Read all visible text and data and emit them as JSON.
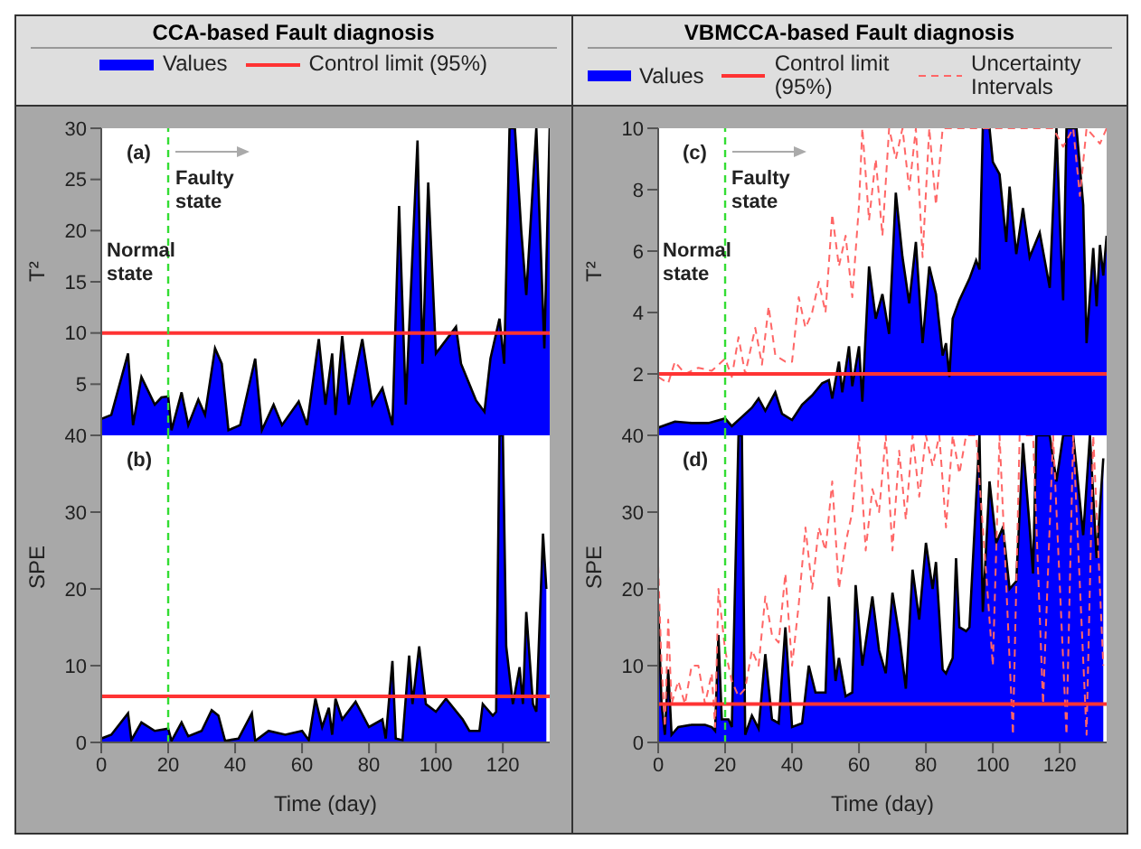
{
  "chart_data": [
    {
      "type": "area",
      "title": "CCA-based Fault diagnosis",
      "ylabel": "T²",
      "legend": "top",
      "annotations": [
        "(a)",
        "Faulty state",
        "Normal state"
      ],
      "xlim": [
        0,
        134
      ],
      "xticks": [
        0,
        20,
        40,
        60,
        80,
        100,
        120
      ],
      "ylim": [
        0,
        30
      ],
      "yticks": [
        {
          "value": 0,
          "label": null
        },
        5,
        10,
        15,
        20,
        25,
        30
      ],
      "tick_labels": "y",
      "series": [
        {
          "name": "Values",
          "color": "#0000ff",
          "x": [
            0,
            3,
            8,
            9.5,
            12,
            16,
            18,
            20,
            21,
            24,
            26,
            29,
            31,
            34,
            36,
            38,
            41.5,
            46,
            48,
            51.5,
            54,
            59,
            61.5,
            65,
            67,
            69,
            70,
            72,
            74,
            78,
            81,
            84,
            87,
            89,
            91,
            94.5,
            96,
            97.7,
            100,
            106,
            107.5,
            112,
            114.5,
            116.3,
            119,
            120.4,
            122,
            123.6,
            125.5,
            127,
            130,
            132.4,
            134
          ],
          "values": [
            1.6,
            2,
            8,
            1,
            5.7,
            3,
            3.7,
            3.8,
            0.5,
            4.2,
            1,
            3.5,
            2,
            8.5,
            7,
            0.5,
            1,
            7.5,
            0.5,
            3,
            1,
            3.3,
            1,
            9.4,
            3,
            8,
            2,
            9.7,
            3,
            9.4,
            3,
            4.6,
            1,
            22.4,
            3,
            28.8,
            7,
            24.7,
            8,
            10.6,
            7,
            3.4,
            2.3,
            7.5,
            11.4,
            7,
            30,
            30,
            20,
            13.7,
            30,
            8.5,
            30
          ]
        }
      ],
      "ref_lines": [
        {
          "axis": "y",
          "value": 10,
          "label": "Control limit (95%)",
          "color": "#ff3333"
        },
        {
          "axis": "x",
          "value": 20,
          "color": "#33dd33",
          "line_style": "dashed"
        }
      ]
    },
    {
      "type": "area",
      "xlabel": "Time (day)",
      "ylabel": "SPE",
      "annotations": [
        "(b)"
      ],
      "xlim": [
        0,
        134
      ],
      "xticks": [
        0,
        20,
        40,
        60,
        80,
        100,
        120
      ],
      "ylim": [
        0,
        40
      ],
      "yticks": [
        0,
        10,
        20,
        30,
        40
      ],
      "series": [
        {
          "color": "#0000ff",
          "x": [
            0,
            3,
            8,
            9,
            12,
            16,
            20,
            21,
            24,
            26,
            30,
            33,
            35,
            37,
            41,
            45,
            46,
            50,
            55,
            60,
            62,
            64,
            66,
            68,
            69,
            70,
            72,
            76,
            80,
            84,
            85,
            87,
            88,
            90,
            92,
            93,
            95,
            97,
            100,
            103,
            108,
            110,
            113,
            114,
            117,
            118,
            119,
            120,
            121,
            123,
            125,
            126,
            127,
            129,
            130,
            132,
            133
          ],
          "values": [
            0.5,
            1,
            3.8,
            0.3,
            2.6,
            1.5,
            1.8,
            0.2,
            2.6,
            0.8,
            1.5,
            4.2,
            3.5,
            0.2,
            0.5,
            3.8,
            0.2,
            1.5,
            1,
            1.5,
            0.3,
            5.7,
            2,
            4.5,
            1,
            5.7,
            3,
            5.3,
            2,
            3,
            0.5,
            10.6,
            0.5,
            0.3,
            11.3,
            5,
            12.5,
            5,
            4,
            5.7,
            3,
            1.5,
            1.5,
            5,
            3.5,
            4,
            40,
            40,
            12.5,
            5,
            9.8,
            5,
            17,
            5,
            4,
            27.2,
            20
          ]
        }
      ],
      "ref_lines": [
        {
          "axis": "y",
          "value": 6,
          "color": "#ff3333"
        },
        {
          "axis": "x",
          "value": 20,
          "color": "#33dd33",
          "line_style": "dashed"
        }
      ]
    },
    {
      "type": "area",
      "title": "VBMCCA-based Fault diagnosis",
      "ylabel": "T²",
      "legend": "top",
      "annotations": [
        "(c)",
        "Faulty state",
        "Normal state"
      ],
      "xlim": [
        0,
        134
      ],
      "xticks": [
        0,
        20,
        40,
        60,
        80,
        100,
        120
      ],
      "ylim": [
        0,
        10
      ],
      "yticks": [
        {
          "value": 0,
          "label": null
        },
        2,
        4,
        6,
        8,
        10
      ],
      "tick_labels": "y",
      "series": [
        {
          "name": "Values",
          "color": "#0000ff",
          "x": [
            0,
            5,
            10,
            15,
            20,
            22,
            25,
            28,
            30,
            32,
            35,
            37,
            40,
            43,
            46,
            49,
            51,
            52,
            54,
            55,
            57,
            58,
            60,
            61,
            63,
            65,
            67,
            69,
            71,
            73,
            75,
            77,
            79,
            81,
            83,
            85,
            86,
            87,
            88,
            90,
            93,
            95,
            96,
            97,
            99,
            100,
            102,
            104,
            105,
            107,
            109,
            111,
            114,
            117,
            119,
            120,
            121,
            122,
            125,
            127,
            128,
            130,
            131,
            132,
            133,
            134
          ],
          "values": [
            0.25,
            0.45,
            0.4,
            0.4,
            0.55,
            0.3,
            0.6,
            0.9,
            1.2,
            0.8,
            1.4,
            0.7,
            0.5,
            1,
            1.3,
            1.7,
            1.8,
            1.2,
            2.4,
            1.4,
            2.9,
            1.6,
            2.9,
            1.1,
            5.5,
            3.8,
            4.6,
            3.3,
            7.9,
            5.8,
            4.3,
            6.3,
            3,
            5.5,
            4.6,
            2.6,
            3,
            1.9,
            3.8,
            4.4,
            5.1,
            5.7,
            5.4,
            10,
            10,
            8.9,
            8.5,
            6.3,
            8.1,
            5.9,
            7.4,
            5.8,
            6.6,
            4.8,
            10,
            7,
            4.4,
            10,
            10,
            7.5,
            3,
            6.1,
            4.2,
            6.2,
            5.2,
            6.5
          ]
        },
        {
          "name": "Uncertainty Intervals",
          "type": "line",
          "line_style": "dashed",
          "color": "#ff6666",
          "x": [
            0,
            3,
            5,
            8,
            12,
            16,
            20,
            22,
            24,
            26,
            29,
            31,
            33,
            35,
            38,
            40,
            42,
            44,
            46,
            48,
            50,
            52,
            54,
            56,
            58,
            60,
            61,
            63,
            65,
            67,
            69,
            71,
            73,
            75,
            77,
            79,
            81,
            83,
            85,
            88,
            93,
            99,
            105,
            110,
            118,
            121,
            124,
            126,
            128,
            132,
            134
          ],
          "values": [
            1.9,
            1.7,
            2.4,
            2,
            2.2,
            2.1,
            2.5,
            1.9,
            3.2,
            2,
            3.5,
            2.3,
            4.2,
            2.6,
            2.4,
            2.4,
            4.5,
            3.5,
            4,
            5,
            4,
            7.2,
            5.5,
            6.5,
            4.5,
            7.5,
            10,
            7,
            9,
            6.5,
            10,
            9,
            10,
            8,
            10,
            5.8,
            10,
            7.5,
            10,
            10,
            10,
            10,
            10,
            10,
            10,
            9.4,
            10,
            7.8,
            10,
            9.5,
            10
          ]
        }
      ],
      "ref_lines": [
        {
          "axis": "y",
          "value": 2,
          "label": "Control limit (95%)",
          "color": "#ff3333"
        },
        {
          "axis": "x",
          "value": 20,
          "color": "#33dd33",
          "line_style": "dashed"
        }
      ]
    },
    {
      "type": "area",
      "xlabel": "Time (day)",
      "ylabel": "SPE",
      "annotations": [
        "(d)"
      ],
      "xlim": [
        0,
        134
      ],
      "xticks": [
        0,
        20,
        40,
        60,
        80,
        100,
        120
      ],
      "ylim": [
        0,
        40
      ],
      "yticks": [
        0,
        10,
        20,
        30,
        40
      ],
      "series": [
        {
          "color": "#0000ff",
          "x": [
            0,
            1,
            2,
            3,
            4,
            6,
            10,
            14,
            16,
            17,
            18,
            19,
            21,
            22,
            24,
            25,
            26,
            28,
            30,
            32,
            34,
            36,
            38,
            40,
            43,
            45,
            47,
            50,
            51,
            53,
            54,
            56,
            58,
            59,
            61,
            64,
            66,
            68,
            70,
            72,
            74,
            76,
            78,
            80,
            82,
            83,
            85,
            86,
            88,
            89,
            90,
            92,
            93,
            96,
            97,
            99,
            101,
            103,
            105,
            107,
            109,
            111,
            112,
            113,
            117,
            119,
            121,
            124,
            127,
            129,
            131,
            133
          ],
          "values": [
            18,
            5,
            1,
            9.5,
            1,
            2,
            2.3,
            2.3,
            2,
            1.5,
            14,
            3,
            3,
            2,
            40,
            40,
            1,
            3.5,
            1.8,
            11.5,
            3,
            2.5,
            15,
            2,
            2.5,
            10,
            6.5,
            6.5,
            19,
            8,
            11,
            6,
            6.5,
            20.5,
            10,
            19,
            12,
            9,
            19.5,
            14,
            7,
            22.5,
            16,
            26,
            20,
            23.5,
            9.5,
            9,
            11,
            24,
            15,
            14.5,
            15,
            40,
            17,
            34,
            26,
            28,
            20,
            21,
            39,
            28,
            22,
            40,
            40,
            34,
            40,
            40,
            27,
            40,
            24,
            37
          ]
        },
        {
          "type": "line",
          "line_style": "dashed",
          "color": "#ff6666",
          "x": [
            0,
            1,
            2,
            3,
            4,
            6,
            8,
            10,
            12,
            14,
            16,
            17,
            18,
            20,
            22,
            24,
            26,
            28,
            30,
            32,
            34,
            36,
            38,
            40,
            42,
            44,
            46,
            48,
            50,
            52,
            54,
            56,
            58,
            60,
            62,
            64,
            66,
            68,
            70,
            72,
            74,
            76,
            78,
            80,
            82,
            84,
            86,
            88,
            90,
            92,
            95,
            100,
            102,
            106,
            108,
            112,
            115,
            118,
            122,
            124,
            128,
            130,
            133
          ],
          "values": [
            23,
            10,
            2,
            16,
            5,
            8,
            5,
            10,
            10,
            5,
            9,
            2,
            20,
            12,
            8,
            6,
            7,
            12,
            10,
            19,
            14,
            13,
            22,
            10,
            18,
            28,
            20,
            28,
            25,
            34,
            20,
            26,
            30,
            40,
            25,
            33,
            30,
            40,
            25,
            38,
            29,
            40,
            32,
            40,
            36,
            40,
            28,
            40,
            35,
            40,
            40,
            10,
            40,
            1,
            40,
            40,
            5,
            40,
            1,
            40,
            1,
            40,
            10
          ]
        }
      ],
      "ref_lines": [
        {
          "axis": "y",
          "value": 5,
          "color": "#ff3333"
        },
        {
          "axis": "x",
          "value": 20,
          "color": "#33dd33",
          "line_style": "dashed"
        }
      ]
    }
  ]
}
